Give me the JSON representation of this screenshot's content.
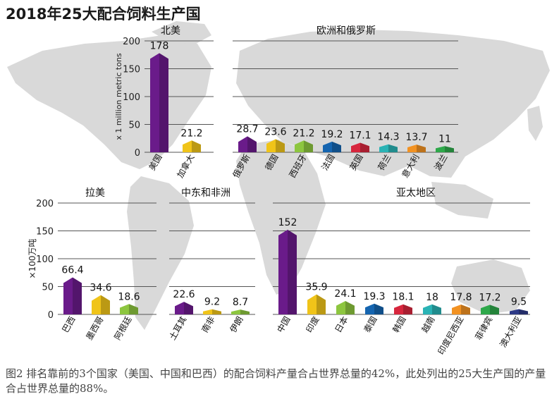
{
  "title": "2018年25大配合饲料生产国",
  "caption": "图2 排名靠前的3个国家（美国、中国和巴西）的配合饲料产量合占世界总量的42%，此处列出的25大生产国的产量合占世界总量的88%。",
  "colors": {
    "purple": "#6a1b8a",
    "yellow": "#f0c419",
    "green": "#8dc63f",
    "blue": "#1565b0",
    "red": "#d7263d",
    "teal": "#2ab3b5",
    "orange": "#f29222",
    "dark_green": "#2ea84a",
    "navy": "#2e3a87",
    "map": "#d9d9d9",
    "gridline": "#555555"
  },
  "chart_data": [
    {
      "type": "bar",
      "title": "北美",
      "ylabel": "x 1 million metric tons",
      "ylim": [
        0,
        200
      ],
      "yticks": [
        0,
        50,
        100,
        150,
        200
      ],
      "categories": [
        "美国",
        "加拿大"
      ],
      "values": [
        178,
        21.2
      ],
      "value_labels": [
        "178",
        "21.2"
      ],
      "bar_colors": [
        "#6a1b8a",
        "#f0c419"
      ]
    },
    {
      "type": "bar",
      "title": "欧洲和俄罗斯",
      "ylim": [
        0,
        200
      ],
      "categories": [
        "俄罗斯",
        "德国",
        "西班牙",
        "法国",
        "英国",
        "荷兰",
        "意大利",
        "波兰"
      ],
      "values": [
        28.7,
        23.6,
        21.2,
        19.2,
        17.1,
        14.3,
        13.7,
        11
      ],
      "value_labels": [
        "28.7",
        "23.6",
        "21.2",
        "19.2",
        "17.1",
        "14.3",
        "13.7",
        "11"
      ],
      "bar_colors": [
        "#6a1b8a",
        "#f0c419",
        "#8dc63f",
        "#1565b0",
        "#d7263d",
        "#2ab3b5",
        "#f29222",
        "#2ea84a"
      ]
    },
    {
      "type": "bar",
      "title": "拉美",
      "ylabel": "×100万吨",
      "ylim": [
        0,
        200
      ],
      "yticks": [
        0,
        50,
        100,
        150,
        200
      ],
      "categories": [
        "巴西",
        "墨西哥",
        "阿根廷"
      ],
      "values": [
        66.4,
        34.6,
        18.6
      ],
      "value_labels": [
        "66.4",
        "34.6",
        "18.6"
      ],
      "bar_colors": [
        "#6a1b8a",
        "#f0c419",
        "#8dc63f"
      ]
    },
    {
      "type": "bar",
      "title": "中东和非洲",
      "ylim": [
        0,
        200
      ],
      "categories": [
        "土耳其",
        "南非",
        "伊朗"
      ],
      "values": [
        22.6,
        9.2,
        8.7
      ],
      "value_labels": [
        "22.6",
        "9.2",
        "8.7"
      ],
      "bar_colors": [
        "#6a1b8a",
        "#f0c419",
        "#8dc63f"
      ]
    },
    {
      "type": "bar",
      "title": "亚太地区",
      "ylim": [
        0,
        200
      ],
      "categories": [
        "中国",
        "印度",
        "日本",
        "泰国",
        "韩国",
        "越南",
        "印度尼西亚",
        "菲律宾",
        "澳大利亚"
      ],
      "values": [
        152,
        35.9,
        24.1,
        19.3,
        18.1,
        18,
        17.8,
        17.2,
        9.5
      ],
      "value_labels": [
        "152",
        "35.9",
        "24.1",
        "19.3",
        "18.1",
        "18",
        "17.8",
        "17.2",
        "9.5"
      ],
      "bar_colors": [
        "#6a1b8a",
        "#f0c419",
        "#8dc63f",
        "#1565b0",
        "#d7263d",
        "#2ab3b5",
        "#f29222",
        "#2ea84a",
        "#2e3a87"
      ]
    }
  ]
}
